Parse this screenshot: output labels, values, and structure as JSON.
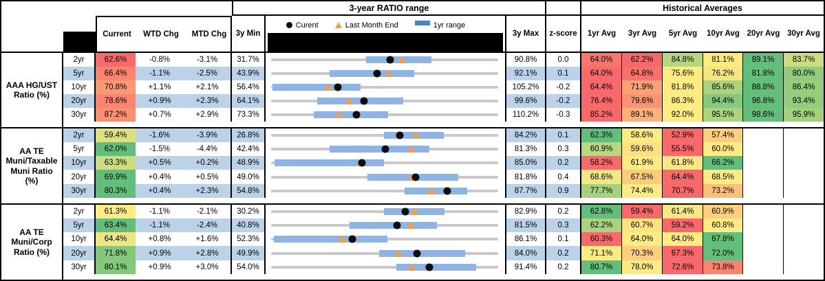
{
  "header": {
    "range_title": "3-year RATIO range",
    "hist_title": "Historical Averages",
    "col_current": "Current",
    "col_wtd": "WTD Chg",
    "col_mtd": "MTD Chg",
    "col_3y_min": "3y Min",
    "col_3y_max": "3y Max",
    "col_zscore": "z-score",
    "avg_cols": [
      "1yr Avg",
      "3yr Avg",
      "5yr Avg",
      "10yr Avg",
      "20yr Avg",
      "30yr Avg"
    ],
    "legend": {
      "current": "Curent",
      "last_month": "Last Month End",
      "range": "1yr range"
    }
  },
  "colors": {
    "band_blue": "#BCD2E8",
    "range_bar_blue": "#8EB4E3",
    "legend_bar_blue": "#4F81BD",
    "track_gray": "#C9C9C9",
    "marker_black": "#0d0d0d",
    "triangle_orange": "#F79C49",
    "heat_red": "#F8696B",
    "heat_yellow": "#FFEB84",
    "heat_green": "#63BE7B"
  },
  "chart_data": {
    "type": "table",
    "note": "Muni ratio monitor: each row has a 3y min/max range strip with 1yr range bar, current dot, last-month-end triangle; heatmap-colored current and historical averages.",
    "groups": [
      {
        "label": "AAA HG/UST\nRatio (%)",
        "rows": [
          {
            "tenor": "2yr",
            "current": "62.6%",
            "wtd": "-0.8%",
            "mtd": "-3.1%",
            "min_label": "31.7%",
            "max_label": "90.8%",
            "z": "0.0",
            "min": 31.7,
            "max": 90.8,
            "current_val": 62.6,
            "last_month": 65.7,
            "bar_lo": 56.5,
            "bar_hi": 73.5,
            "avgs": [
              "64.0%",
              "62.2%",
              "84.8%",
              "81.1%",
              "89.1%",
              "83.7%"
            ],
            "colors": {
              "current": "#F86B6B",
              "avgs": [
                "#F9756D",
                "#F8696B",
                "#B7D680",
                "#FFEB84",
                "#63BE7B",
                "#CCDC81"
              ]
            }
          },
          {
            "tenor": "5yr",
            "current": "66.4%",
            "wtd": "-1.1%",
            "mtd": "-2.5%",
            "min_label": "43.9%",
            "max_label": "92.1%",
            "z": "0.1",
            "min": 43.9,
            "max": 92.1,
            "current_val": 66.4,
            "last_month": 68.9,
            "bar_lo": 56.3,
            "bar_hi": 74.3,
            "avgs": [
              "64.0%",
              "64.8%",
              "75.6%",
              "76.2%",
              "81.8%",
              "80.0%"
            ],
            "colors": {
              "current": "#F98470",
              "avgs": [
                "#F8696B",
                "#F8726D",
                "#FFEB84",
                "#F0E783",
                "#63BE7B",
                "#90CB7E"
              ]
            }
          },
          {
            "tenor": "10yr",
            "current": "70.8%",
            "wtd": "+1.1%",
            "mtd": "+2.1%",
            "min_label": "56.4%",
            "max_label": "105.2%",
            "z": "-0.2",
            "min": 56.4,
            "max": 105.2,
            "current_val": 70.8,
            "last_month": 68.7,
            "bar_lo": 56.7,
            "bar_hi": 75.6,
            "avgs": [
              "64.4%",
              "71.9%",
              "81.8%",
              "85.6%",
              "88.8%",
              "86.4%"
            ],
            "colors": {
              "current": "#FA9974",
              "avgs": [
                "#F8696B",
                "#FBA176",
                "#FFEB84",
                "#AAD27F",
                "#63BE7B",
                "#98CD7E"
              ]
            }
          },
          {
            "tenor": "20yr",
            "current": "78.6%",
            "wtd": "+0.9%",
            "mtd": "+2.3%",
            "min_label": "64.1%",
            "max_label": "99.6%",
            "z": "-0.2",
            "min": 64.1,
            "max": 99.6,
            "current_val": 78.6,
            "last_month": 76.3,
            "bar_lo": 71.3,
            "bar_hi": 84.8,
            "avgs": [
              "76.4%",
              "79.6%",
              "86.3%",
              "94.4%",
              "96.8%",
              "93.4%"
            ],
            "colors": {
              "current": "#F98570",
              "avgs": [
                "#F8696B",
                "#FA9373",
                "#FFEB84",
                "#86C87D",
                "#63BE7B",
                "#95CC7D"
              ]
            }
          },
          {
            "tenor": "30yr",
            "current": "87.2%",
            "wtd": "+0.7%",
            "mtd": "+2.9%",
            "min_label": "73.3%",
            "max_label": "110.2%",
            "z": "-0.3",
            "min": 73.3,
            "max": 110.2,
            "current_val": 87.2,
            "last_month": 84.3,
            "bar_lo": 80.2,
            "bar_hi": 92.3,
            "avgs": [
              "85.2%",
              "89.1%",
              "92.0%",
              "95.5%",
              "98.6%",
              "95.9%"
            ],
            "colors": {
              "current": "#FA8F72",
              "avgs": [
                "#F8696B",
                "#FCB379",
                "#FFEB84",
                "#ACD37F",
                "#63BE7B",
                "#A2D07E"
              ]
            }
          }
        ]
      },
      {
        "label": "AA TE\nMuni/Taxable\nMuni Ratio\n(%)",
        "rows": [
          {
            "tenor": "2yr",
            "current": "59.4%",
            "wtd": "-1.6%",
            "mtd": "-3.9%",
            "min_label": "26.8%",
            "max_label": "84.2%",
            "z": "0.1",
            "min": 26.8,
            "max": 84.2,
            "current_val": 59.4,
            "last_month": 63.3,
            "bar_lo": 55.3,
            "bar_hi": 70.4,
            "avgs": [
              "62.3%",
              "58.6%",
              "52.9%",
              "57.4%"
            ],
            "colors": {
              "current": "#DDE182",
              "avgs": [
                "#63BE7B",
                "#FFEB84",
                "#F8696B",
                "#FDCF7F"
              ]
            }
          },
          {
            "tenor": "5yr",
            "current": "62.0%",
            "wtd": "-1.5%",
            "mtd": "-4.4%",
            "min_label": "42.4%",
            "max_label": "81.3%",
            "z": "0.3",
            "min": 42.4,
            "max": 81.3,
            "current_val": 62.0,
            "last_month": 66.4,
            "bar_lo": 52.4,
            "bar_hi": 69.5,
            "avgs": [
              "60.9%",
              "59.6%",
              "55.5%",
              "60.0%"
            ],
            "colors": {
              "current": "#63BE7B",
              "avgs": [
                "#B9D680",
                "#FEDF82",
                "#F8696B",
                "#FFEB84"
              ]
            }
          },
          {
            "tenor": "10yr",
            "current": "63.3%",
            "wtd": "+0.5%",
            "mtd": "+0.2%",
            "min_label": "48.9%",
            "max_label": "85.0%",
            "z": "0.2",
            "min": 48.9,
            "max": 85.0,
            "current_val": 63.3,
            "last_month": 63.1,
            "bar_lo": 49.5,
            "bar_hi": 66.8,
            "avgs": [
              "58.2%",
              "61.9%",
              "61.8%",
              "66.2%"
            ],
            "colors": {
              "current": "#CCDC81",
              "avgs": [
                "#F8696B",
                "#FFEB84",
                "#FEE783",
                "#63BE7B"
              ]
            }
          },
          {
            "tenor": "20yr",
            "current": "69.9%",
            "wtd": "+0.4%",
            "mtd": "+0.5%",
            "min_label": "49.0%",
            "max_label": "81.8%",
            "z": "0.4",
            "min": 49.0,
            "max": 81.8,
            "current_val": 69.9,
            "last_month": 69.4,
            "bar_lo": 62.9,
            "bar_hi": 76.0,
            "avgs": [
              "68.6%",
              "67.5%",
              "64.4%",
              "68.5%"
            ],
            "colors": {
              "current": "#63BE7B",
              "avgs": [
                "#F3E783",
                "#FDCB7E",
                "#F8696B",
                "#FFEB84"
              ]
            }
          },
          {
            "tenor": "30yr",
            "current": "80.3%",
            "wtd": "+0.4%",
            "mtd": "+2.3%",
            "min_label": "54.8%",
            "max_label": "87.7%",
            "z": "0.9",
            "min": 54.8,
            "max": 87.7,
            "current_val": 80.3,
            "last_month": 78.0,
            "bar_lo": 74.1,
            "bar_hi": 83.2,
            "avgs": [
              "77.7%",
              "74.4%",
              "70.7%",
              "73.2%"
            ],
            "colors": {
              "current": "#63BE7B",
              "avgs": [
                "#A7D17F",
                "#FFEB84",
                "#F8696B",
                "#FCC07B"
              ]
            }
          }
        ]
      },
      {
        "label": "AA TE\nMuni/Corp\nRatio (%)",
        "rows": [
          {
            "tenor": "2yr",
            "current": "61.3%",
            "wtd": "-1.1%",
            "mtd": "-2.1%",
            "min_label": "30.2%",
            "max_label": "82.9%",
            "z": "0.2",
            "min": 30.2,
            "max": 82.9,
            "current_val": 61.3,
            "last_month": 63.4,
            "bar_lo": 56.4,
            "bar_hi": 70.5,
            "avgs": [
              "62.8%",
              "59.4%",
              "61.4%",
              "60.9%"
            ],
            "colors": {
              "current": "#FFEB84",
              "avgs": [
                "#63BE7B",
                "#F8696B",
                "#F4E883",
                "#FDCF7F"
              ]
            }
          },
          {
            "tenor": "5yr",
            "current": "63.4%",
            "wtd": "-1.1%",
            "mtd": "-2.4%",
            "min_label": "40.8%",
            "max_label": "81.5%",
            "z": "0.3",
            "min": 40.8,
            "max": 81.5,
            "current_val": 63.4,
            "last_month": 65.8,
            "bar_lo": 54.8,
            "bar_hi": 70.5,
            "avgs": [
              "62.2%",
              "60.7%",
              "59.2%",
              "60.8%"
            ],
            "colors": {
              "current": "#63BE7B",
              "avgs": [
                "#ABD27F",
                "#FEE282",
                "#F8696B",
                "#FFEB84"
              ]
            }
          },
          {
            "tenor": "10yr",
            "current": "64.4%",
            "wtd": "+0.8%",
            "mtd": "+1.6%",
            "min_label": "52.3%",
            "max_label": "86.1%",
            "z": "0.1",
            "min": 52.3,
            "max": 86.1,
            "current_val": 64.4,
            "last_month": 62.8,
            "bar_lo": 52.7,
            "bar_hi": 69.6,
            "avgs": [
              "60.3%",
              "64.0%",
              "64.0%",
              "67.8%"
            ],
            "colors": {
              "current": "#EEE683",
              "avgs": [
                "#F8696B",
                "#FFEB84",
                "#FFEB84",
                "#63BE7B"
              ]
            }
          },
          {
            "tenor": "20yr",
            "current": "71.8%",
            "wtd": "+0.9%",
            "mtd": "+2.8%",
            "min_label": "49.9%",
            "max_label": "84.0%",
            "z": "0.2",
            "min": 49.9,
            "max": 84.0,
            "current_val": 71.8,
            "last_month": 69.0,
            "bar_lo": 66.1,
            "bar_hi": 79.0,
            "avgs": [
              "71.1%",
              "70.3%",
              "67.3%",
              "72.0%"
            ],
            "colors": {
              "current": "#85C87D",
              "avgs": [
                "#FFEB84",
                "#FDCF7F",
                "#F8696B",
                "#63BE7B"
              ]
            }
          },
          {
            "tenor": "30yr",
            "current": "80.1%",
            "wtd": "+0.9%",
            "mtd": "+3.0%",
            "min_label": "54.0%",
            "max_label": "91.4%",
            "z": "0.2",
            "min": 54.0,
            "max": 91.4,
            "current_val": 80.1,
            "last_month": 77.1,
            "bar_lo": 74.6,
            "bar_hi": 87.8,
            "avgs": [
              "80.7%",
              "78.0%",
              "72.6%",
              "73.8%"
            ],
            "colors": {
              "current": "#85C87D",
              "avgs": [
                "#63BE7B",
                "#FFEB84",
                "#F8696B",
                "#F98570"
              ]
            }
          }
        ]
      }
    ]
  }
}
